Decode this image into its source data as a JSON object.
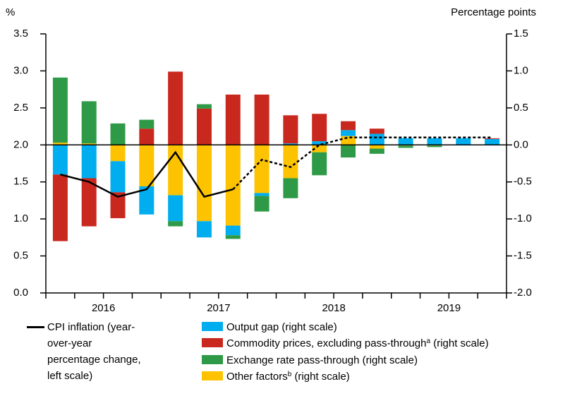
{
  "chart_data": {
    "type": "bar_line",
    "y_label": "%",
    "y2_label": "Percentage points",
    "ylim": [
      0,
      3.5
    ],
    "yticks": [
      {
        "value": 0,
        "label": "0.0"
      },
      0.5,
      {
        "value": 1,
        "label": "1.0"
      },
      1.5,
      {
        "value": 2,
        "label": "2.0"
      },
      2.5,
      {
        "value": 3,
        "label": "3.0"
      },
      3.5
    ],
    "y2lim": [
      -2,
      1.5
    ],
    "y2ticks": [
      {
        "value": -2,
        "label": "-2.0"
      },
      -1.5,
      {
        "value": -1,
        "label": "-1.0"
      },
      -0.5,
      {
        "value": 0,
        "label": "0.0"
      },
      0.5,
      {
        "value": 1,
        "label": "1.0"
      },
      1.5
    ],
    "year_labels": [
      "2016",
      "2017",
      "2018",
      "2019"
    ],
    "series": [
      {
        "name": "Output gap (right scale)",
        "color": "#00aeef",
        "axis": "y2",
        "type": "bar",
        "values": [
          -0.4,
          -0.45,
          -0.42,
          -0.38,
          -0.35,
          -0.22,
          -0.13,
          -0.04,
          0.02,
          0.05,
          0.08,
          0.15,
          0.09,
          0.09,
          0.09,
          0.08
        ]
      },
      {
        "name": "Commodity prices, excluding pass-through",
        "note": "a",
        "name_suffix": "(right scale)",
        "color": "#c8281e",
        "axis": "y2",
        "type": "bar",
        "values": [
          -0.9,
          -0.65,
          -0.35,
          0.22,
          0.99,
          0.49,
          0.68,
          0.68,
          0.38,
          0.37,
          0.12,
          0.07,
          0,
          0,
          0,
          0.01
        ]
      },
      {
        "name": "Exchange rate pass-through (right scale)",
        "color": "#2e9a47",
        "axis": "y2",
        "type": "bar",
        "values": [
          0.88,
          0.57,
          0.29,
          0.12,
          -0.07,
          0.06,
          -0.05,
          -0.21,
          -0.27,
          -0.31,
          -0.17,
          -0.07,
          -0.03,
          -0.02,
          0,
          0
        ]
      },
      {
        "name": "Other factors",
        "note": "b",
        "name_suffix": "(right scale)",
        "color": "#fdc300",
        "axis": "y2",
        "type": "bar",
        "values": [
          0.03,
          0.02,
          -0.22,
          -0.56,
          -0.68,
          -1.03,
          -1.09,
          -0.65,
          -0.45,
          -0.1,
          0.12,
          -0.05,
          -0.01,
          -0.01,
          0,
          0
        ]
      },
      {
        "name": "CPI inflation (year-over-year percentage change, left scale)",
        "color": "#000000",
        "type": "line",
        "style": "solid",
        "values": [
          1.6,
          1.5,
          1.3,
          1.4,
          1.9,
          1.3,
          1.4,
          null,
          null,
          null,
          null,
          null,
          null,
          null,
          null,
          null
        ]
      },
      {
        "color": "#000000",
        "type": "line",
        "style": "dashed",
        "values": [
          null,
          null,
          null,
          null,
          null,
          null,
          1.4,
          1.8,
          1.7,
          2.0,
          2.1,
          2.1,
          2.1,
          2.1,
          2.1,
          2.1
        ]
      }
    ]
  }
}
